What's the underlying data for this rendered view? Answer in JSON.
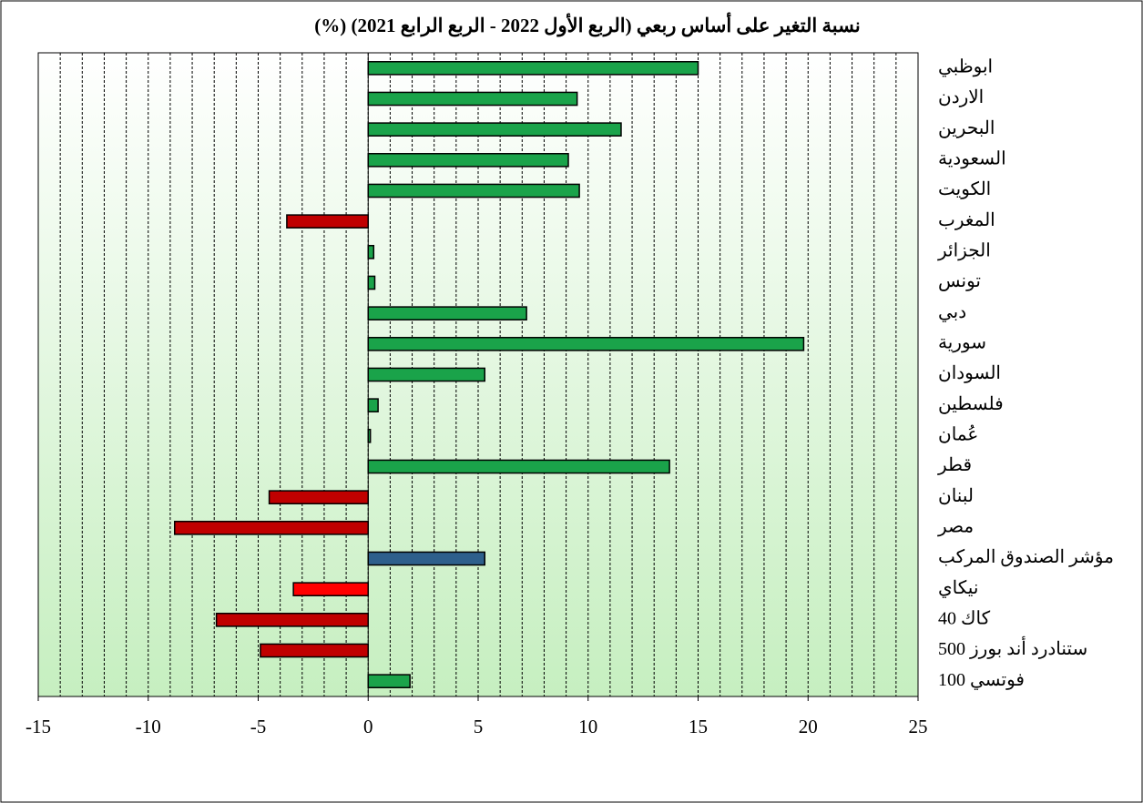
{
  "chart_data": {
    "type": "barh",
    "title": "نسبة التغير على أساس ربعي (الربع الأول 2022 - الربع الرابع 2021) (%)",
    "categories": [
      "ابوظبي",
      "الاردن",
      "البحرين",
      "السعودية",
      "الكويت",
      "المغرب",
      "الجزائر",
      "تونس",
      "دبي",
      "سورية",
      "السودان",
      "فلسطين",
      "عُمان",
      "قطر",
      "لبنان",
      "مصر",
      "مؤشر الصندوق المركب",
      "نيكاي",
      "كاك 40",
      "ستنادرد أند بورز 500",
      "فوتسي 100"
    ],
    "series": [
      {
        "values": [
          15.0,
          9.5,
          11.5,
          9.1,
          9.6,
          -3.7,
          0.25,
          0.3,
          7.2,
          19.8,
          5.3,
          0.45,
          0.1,
          13.7,
          -4.5,
          -8.8,
          5.3,
          -3.4,
          -6.9,
          -4.9,
          1.9
        ],
        "colors": [
          "#1aa34a",
          "#1aa34a",
          "#1aa34a",
          "#1aa34a",
          "#1aa34a",
          "#c00000",
          "#1aa34a",
          "#1aa34a",
          "#1aa34a",
          "#1aa34a",
          "#1aa34a",
          "#1aa34a",
          "#1aa34a",
          "#1aa34a",
          "#c00000",
          "#c00000",
          "#2e5f8c",
          "#ff0000",
          "#c00000",
          "#c00000",
          "#1aa34a"
        ]
      }
    ],
    "xlim": [
      -15,
      25
    ],
    "xticks": [
      -15,
      -10,
      -5,
      0,
      5,
      10,
      15,
      20,
      25
    ],
    "x_minor_grid_step": 1,
    "grid": true
  }
}
